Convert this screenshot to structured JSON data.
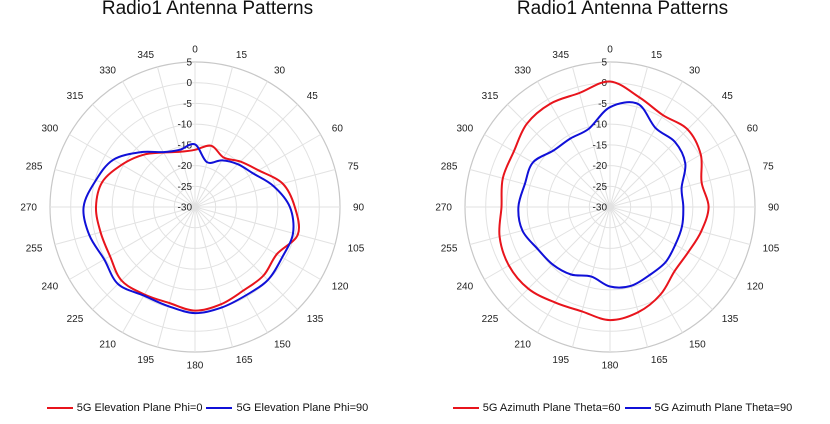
{
  "chart_data": [
    {
      "type": "polar-line",
      "title": "Radio1 Antenna Patterns",
      "angle_ticks": [
        "0",
        "15",
        "30",
        "45",
        "60",
        "75",
        "90",
        "105",
        "120",
        "135",
        "150",
        "165",
        "180",
        "195",
        "210",
        "225",
        "240",
        "255",
        "270",
        "285",
        "300",
        "315",
        "330",
        "345"
      ],
      "radial_ticks": [
        "5",
        "0",
        "-5",
        "-10",
        "-15",
        "-20",
        "-25",
        "-30"
      ],
      "rlim": [
        -30,
        5
      ],
      "grid": true,
      "legend_position": "bottom",
      "angles": [
        0,
        15,
        30,
        45,
        60,
        75,
        90,
        105,
        120,
        135,
        150,
        165,
        180,
        195,
        210,
        225,
        240,
        255,
        270,
        285,
        300,
        315,
        330,
        345
      ],
      "series": [
        {
          "name": "5G Elevation Plane Phi=0",
          "color": "#e8141c",
          "values": [
            -16.2,
            -14.7,
            -16.2,
            -14.5,
            -12.3,
            -8.1,
            -5.9,
            -4.3,
            -7.2,
            -6.6,
            -6.7,
            -5.7,
            -5.0,
            -6.0,
            -5.6,
            -4.9,
            -6.3,
            -6.4,
            -6.1,
            -6.8,
            -9.6,
            -12.2,
            -14.8,
            -16.2
          ]
        },
        {
          "name": "5G Elevation Plane Phi=90",
          "color": "#1010d8",
          "values": [
            -14.9,
            -18.8,
            -17.0,
            -15.4,
            -13.8,
            -10.4,
            -7.1,
            -5.5,
            -5.7,
            -5.1,
            -5.4,
            -4.9,
            -4.4,
            -5.2,
            -5.3,
            -3.7,
            -4.7,
            -3.6,
            -3.1,
            -5.2,
            -7.2,
            -11.3,
            -14.7,
            -15.7
          ]
        }
      ]
    },
    {
      "type": "polar-line",
      "title": "Radio1 Antenna Patterns",
      "angle_ticks": [
        "0",
        "15",
        "30",
        "45",
        "60",
        "75",
        "90",
        "105",
        "120",
        "135",
        "150",
        "165",
        "180",
        "195",
        "210",
        "225",
        "240",
        "255",
        "270",
        "285",
        "300",
        "315",
        "330",
        "345"
      ],
      "radial_ticks": [
        "5",
        "0",
        "-5",
        "-10",
        "-15",
        "-20",
        "-25",
        "-30"
      ],
      "rlim": [
        -30,
        5
      ],
      "grid": true,
      "legend_position": "bottom",
      "angles": [
        0,
        15,
        30,
        45,
        60,
        75,
        90,
        105,
        120,
        135,
        150,
        165,
        180,
        195,
        210,
        225,
        240,
        255,
        270,
        285,
        300,
        315,
        330,
        345
      ],
      "series": [
        {
          "name": "5G Azimuth Plane Theta=60",
          "color": "#e8141c",
          "values": [
            0.3,
            -2.6,
            -4.4,
            -3.5,
            -4.7,
            -7.1,
            -6.2,
            -7.2,
            -8.2,
            -8.0,
            -5.6,
            -3.7,
            -2.7,
            -3.9,
            -3.4,
            -2.1,
            -1.8,
            -2.4,
            -3.8,
            -3.2,
            -3.2,
            -1.6,
            -1.2,
            -1.5
          ]
        },
        {
          "name": "5G Azimuth Plane Theta=90",
          "color": "#1010d8",
          "values": [
            -5.9,
            -4.2,
            -8.0,
            -7.8,
            -9.0,
            -12.1,
            -12.3,
            -12.0,
            -11.8,
            -11.1,
            -11.0,
            -10.3,
            -10.8,
            -12.6,
            -11.2,
            -10.4,
            -9.8,
            -8.1,
            -7.9,
            -8.7,
            -8.5,
            -10.7,
            -10.9,
            -10.4
          ]
        }
      ]
    }
  ]
}
